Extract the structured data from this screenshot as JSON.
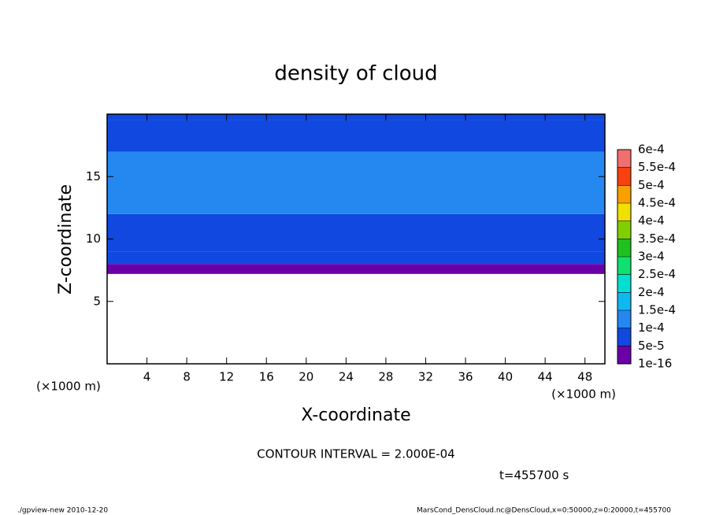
{
  "chart_data": {
    "type": "contour",
    "title": "density of cloud",
    "x_label": "X-coordinate",
    "y_label": "Z-coordinate",
    "x_unit": "(×1000 m)",
    "xlim": [
      0,
      50
    ],
    "ylim": [
      0,
      20
    ],
    "xticks": [
      4,
      8,
      12,
      16,
      20,
      24,
      28,
      32,
      36,
      40,
      44,
      48
    ],
    "yticks": [
      5,
      10,
      15
    ],
    "z": [
      7.2,
      8,
      9,
      12,
      17,
      19.5
    ],
    "values": [
      3e-05,
      6e-05,
      8e-05,
      0.00012,
      9e-05,
      7e-05
    ],
    "levels": [
      {
        "value": 1e-16,
        "label": "1e-16"
      },
      {
        "value": 5e-05,
        "label": "5e-5"
      },
      {
        "value": 0.0001,
        "label": "1e-4"
      },
      {
        "value": 0.00015,
        "label": "1.5e-4"
      },
      {
        "value": 0.0002,
        "label": "2e-4"
      },
      {
        "value": 0.00025,
        "label": "2.5e-4"
      },
      {
        "value": 0.0003,
        "label": "3e-4"
      },
      {
        "value": 0.00035,
        "label": "3.5e-4"
      },
      {
        "value": 0.0004,
        "label": "4e-4"
      },
      {
        "value": 0.00045,
        "label": "4.5e-4"
      },
      {
        "value": 0.0005,
        "label": "5e-4"
      },
      {
        "value": 0.00055,
        "label": "5.5e-4"
      },
      {
        "value": 0.0006,
        "label": "6e-4"
      }
    ],
    "colors": [
      "#6a00a8",
      "#1048e0",
      "#2488f0",
      "#10b8f0",
      "#00e0d0",
      "#10e070",
      "#20c020",
      "#80d000",
      "#f0e000",
      "#f8a000",
      "#f84010",
      "#f07070"
    ],
    "contour_interval": "CONTOUR INTERVAL = 2.000E-04",
    "time": "t=455700 s",
    "footer_left": "./gpview-new  2010-12-20",
    "footer_right": "MarsCond_DensCloud.nc@DensCloud,x=0:50000,z=0:20000,t=455700"
  }
}
